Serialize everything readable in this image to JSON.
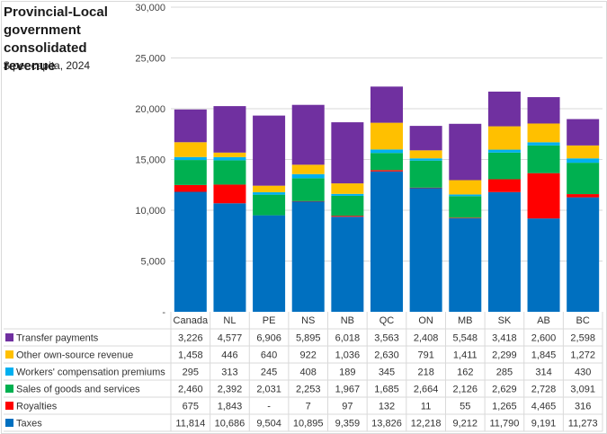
{
  "title": "Provincial-Local government consolidated revenue",
  "subtitle": "$ per capita, 2024",
  "colors": {
    "Transfer payments": "#7030a0",
    "Other own-source revenue": "#ffc000",
    "Workers' compensation premiums": "#00b0f0",
    "Sales of goods and services": "#00b050",
    "Royalties": "#ff0000",
    "Taxes": "#0070c0"
  },
  "chart_data": {
    "type": "bar",
    "stacked": true,
    "title": "Provincial-Local government consolidated revenue",
    "subtitle": "$ per capita, 2024",
    "xlabel": "",
    "ylabel": "",
    "ylim": [
      0,
      30000
    ],
    "yticks": [
      0,
      5000,
      10000,
      15000,
      20000,
      25000,
      30000
    ],
    "ytick_labels": [
      "-",
      "5,000",
      "10,000",
      "15,000",
      "20,000",
      "25,000",
      "30,000"
    ],
    "grid": true,
    "legend": "data-table-bottom",
    "categories": [
      "Canada",
      "NL",
      "PE",
      "NS",
      "NB",
      "QC",
      "ON",
      "MB",
      "SK",
      "AB",
      "BC"
    ],
    "series": [
      {
        "name": "Taxes",
        "values": [
          11814,
          10686,
          9504,
          10895,
          9359,
          13826,
          12218,
          9212,
          11790,
          9191,
          11273
        ],
        "labels": [
          "11,814",
          "10,686",
          "9,504",
          "10,895",
          "9,359",
          "13,826",
          "12,218",
          "9,212",
          "11,790",
          "9,191",
          "11,273"
        ]
      },
      {
        "name": "Royalties",
        "values": [
          675,
          1843,
          0,
          7,
          97,
          132,
          11,
          55,
          1265,
          4465,
          316
        ],
        "labels": [
          "675",
          "1,843",
          "-",
          "7",
          "97",
          "132",
          "11",
          "55",
          "1,265",
          "4,465",
          "316"
        ]
      },
      {
        "name": "Sales of goods and services",
        "values": [
          2460,
          2392,
          2031,
          2253,
          1967,
          1685,
          2664,
          2126,
          2629,
          2728,
          3091
        ],
        "labels": [
          "2,460",
          "2,392",
          "2,031",
          "2,253",
          "1,967",
          "1,685",
          "2,664",
          "2,126",
          "2,629",
          "2,728",
          "3,091"
        ]
      },
      {
        "name": "Workers' compensation premiums",
        "values": [
          295,
          313,
          245,
          408,
          189,
          345,
          218,
          162,
          285,
          314,
          430
        ],
        "labels": [
          "295",
          "313",
          "245",
          "408",
          "189",
          "345",
          "218",
          "162",
          "285",
          "314",
          "430"
        ]
      },
      {
        "name": "Other own-source revenue",
        "values": [
          1458,
          446,
          640,
          922,
          1036,
          2630,
          791,
          1411,
          2299,
          1845,
          1272
        ],
        "labels": [
          "1,458",
          "446",
          "640",
          "922",
          "1,036",
          "2,630",
          "791",
          "1,411",
          "2,299",
          "1,845",
          "1,272"
        ]
      },
      {
        "name": "Transfer payments",
        "values": [
          3226,
          4577,
          6906,
          5895,
          6018,
          3563,
          2408,
          5548,
          3418,
          2600,
          2598
        ],
        "labels": [
          "3,226",
          "4,577",
          "6,906",
          "5,895",
          "6,018",
          "3,563",
          "2,408",
          "5,548",
          "3,418",
          "2,600",
          "2,598"
        ]
      }
    ],
    "table_row_order": [
      "Transfer payments",
      "Other own-source revenue",
      "Workers' compensation premiums",
      "Sales of goods and services",
      "Royalties",
      "Taxes"
    ]
  }
}
